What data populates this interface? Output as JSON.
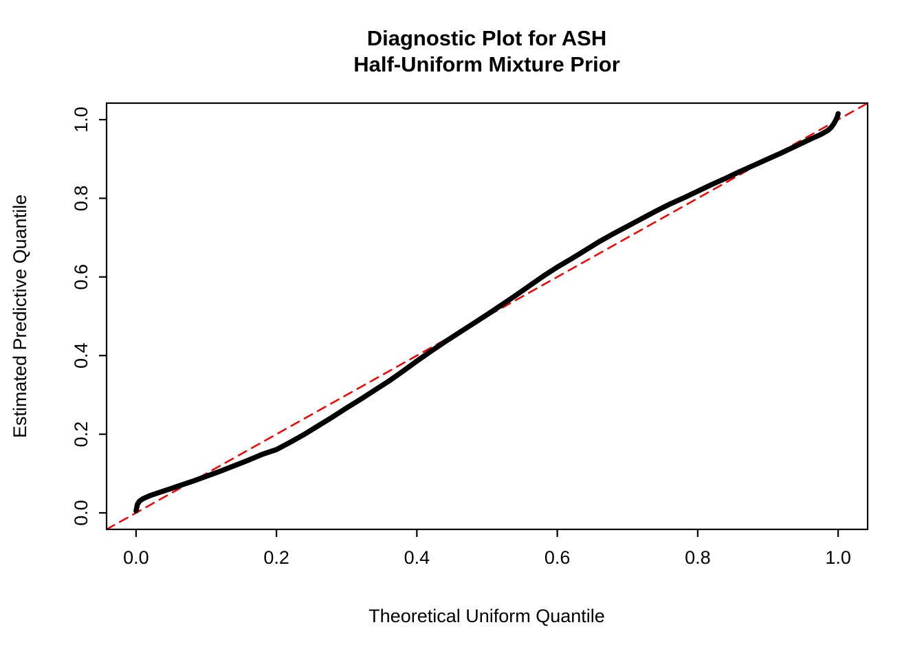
{
  "title": {
    "line1": "Diagnostic Plot for ASH",
    "line2": "Half-Uniform Mixture Prior"
  },
  "axes": {
    "x_label": "Theoretical Uniform Quantile",
    "y_label": "Estimated Predictive Quantile"
  },
  "colors": {
    "curve": "#000000",
    "reference_line": "#FF0000",
    "frame": "#000000",
    "background": "#FFFFFF"
  },
  "chart_data": {
    "type": "line",
    "title": "Diagnostic Plot for ASH Half-Uniform Mixture Prior",
    "xlabel": "Theoretical Uniform Quantile",
    "ylabel": "Estimated Predictive Quantile",
    "xlim": [
      -0.042,
      1.042
    ],
    "ylim": [
      -0.042,
      1.042
    ],
    "grid": false,
    "legend": "none",
    "x_ticks": [
      0.0,
      0.2,
      0.4,
      0.6,
      0.8,
      1.0
    ],
    "y_ticks": [
      0.0,
      0.2,
      0.4,
      0.6,
      0.8,
      1.0
    ],
    "x_tick_labels": [
      "0.0",
      "0.2",
      "0.4",
      "0.6",
      "0.8",
      "1.0"
    ],
    "y_tick_labels": [
      "0.0",
      "0.2",
      "0.4",
      "0.6",
      "0.8",
      "1.0"
    ],
    "series": [
      {
        "name": "estimated-predictive-quantile-curve",
        "color": "#000000",
        "style": "solid",
        "width": 7.5,
        "points": [
          [
            0.0,
            0.005
          ],
          [
            0.002,
            0.022
          ],
          [
            0.005,
            0.03
          ],
          [
            0.01,
            0.036
          ],
          [
            0.02,
            0.044
          ],
          [
            0.03,
            0.05
          ],
          [
            0.04,
            0.056
          ],
          [
            0.05,
            0.062
          ],
          [
            0.06,
            0.068
          ],
          [
            0.08,
            0.08
          ],
          [
            0.1,
            0.093
          ],
          [
            0.12,
            0.106
          ],
          [
            0.14,
            0.12
          ],
          [
            0.16,
            0.134
          ],
          [
            0.18,
            0.149
          ],
          [
            0.2,
            0.161
          ],
          [
            0.22,
            0.18
          ],
          [
            0.24,
            0.2
          ],
          [
            0.26,
            0.222
          ],
          [
            0.28,
            0.244
          ],
          [
            0.3,
            0.267
          ],
          [
            0.32,
            0.289
          ],
          [
            0.34,
            0.312
          ],
          [
            0.36,
            0.335
          ],
          [
            0.38,
            0.36
          ],
          [
            0.4,
            0.386
          ],
          [
            0.42,
            0.411
          ],
          [
            0.44,
            0.435
          ],
          [
            0.46,
            0.458
          ],
          [
            0.48,
            0.481
          ],
          [
            0.5,
            0.504
          ],
          [
            0.52,
            0.528
          ],
          [
            0.54,
            0.552
          ],
          [
            0.56,
            0.577
          ],
          [
            0.58,
            0.602
          ],
          [
            0.6,
            0.625
          ],
          [
            0.62,
            0.646
          ],
          [
            0.64,
            0.668
          ],
          [
            0.66,
            0.69
          ],
          [
            0.68,
            0.71
          ],
          [
            0.7,
            0.729
          ],
          [
            0.72,
            0.748
          ],
          [
            0.74,
            0.767
          ],
          [
            0.76,
            0.785
          ],
          [
            0.78,
            0.801
          ],
          [
            0.8,
            0.818
          ],
          [
            0.82,
            0.835
          ],
          [
            0.84,
            0.851
          ],
          [
            0.86,
            0.868
          ],
          [
            0.88,
            0.884
          ],
          [
            0.9,
            0.9
          ],
          [
            0.92,
            0.916
          ],
          [
            0.94,
            0.933
          ],
          [
            0.96,
            0.95
          ],
          [
            0.975,
            0.962
          ],
          [
            0.985,
            0.972
          ],
          [
            0.99,
            0.98
          ],
          [
            0.994,
            0.99
          ],
          [
            0.997,
            1.0
          ],
          [
            0.999,
            1.008
          ],
          [
            1.0,
            1.015
          ]
        ]
      },
      {
        "name": "reference-diagonal",
        "color": "#FF0000",
        "style": "dashed",
        "width": 2.5,
        "points": [
          [
            -0.042,
            -0.042
          ],
          [
            1.042,
            1.042
          ]
        ]
      }
    ]
  }
}
